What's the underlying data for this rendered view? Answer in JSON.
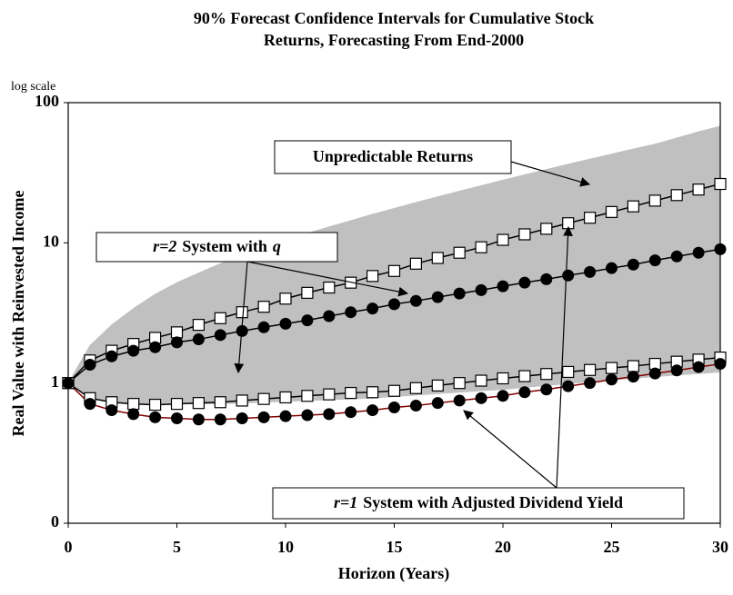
{
  "chart_data": {
    "type": "line",
    "title": [
      "90% Forecast Confidence Intervals for Cumulative Stock",
      "Returns, Forecasting From End-2000"
    ],
    "scale_note": "log scale",
    "xlabel": "Horizon (Years)",
    "ylabel": "Real Value with Reinvested Income",
    "yscale": "log",
    "x": [
      0,
      1,
      2,
      3,
      4,
      5,
      6,
      7,
      8,
      9,
      10,
      11,
      12,
      13,
      14,
      15,
      16,
      17,
      18,
      19,
      20,
      21,
      22,
      23,
      24,
      25,
      26,
      27,
      28,
      29,
      30
    ],
    "xlim": [
      0,
      30
    ],
    "xticks": [
      0,
      5,
      10,
      15,
      20,
      25,
      30
    ],
    "ylim": [
      0.1,
      100
    ],
    "yticks": [
      {
        "value": 0.1,
        "label": "0"
      },
      1,
      10,
      100
    ],
    "band": {
      "color": "#c0c0c0",
      "upper": [
        1,
        1.85,
        2.6,
        3.4,
        4.3,
        5.2,
        6.1,
        7.1,
        8.1,
        9.2,
        10.4,
        11.7,
        13,
        14.4,
        16,
        17.6,
        19.4,
        21.3,
        23.4,
        25.6,
        28,
        30.6,
        33.4,
        36.4,
        39.6,
        43,
        46.7,
        50.6,
        56,
        62,
        68
      ],
      "lower": [
        1,
        0.78,
        0.74,
        0.72,
        0.71,
        0.71,
        0.71,
        0.71,
        0.72,
        0.73,
        0.74,
        0.75,
        0.76,
        0.77,
        0.78,
        0.8,
        0.82,
        0.84,
        0.86,
        0.88,
        0.9,
        0.93,
        0.96,
        0.99,
        1.02,
        1.05,
        1.08,
        1.11,
        1.14,
        1.17,
        1.2
      ]
    },
    "series": [
      {
        "marker": "square",
        "color": "#000000",
        "values": [
          1,
          1.45,
          1.7,
          1.9,
          2.1,
          2.3,
          2.6,
          2.9,
          3.2,
          3.5,
          4.0,
          4.4,
          4.8,
          5.2,
          5.8,
          6.3,
          7.1,
          7.8,
          8.5,
          9.3,
          10.5,
          11.5,
          12.6,
          13.8,
          15.1,
          16.6,
          18.2,
          20,
          21.9,
          24,
          26.3
        ]
      },
      {
        "marker": "circle",
        "color": "#000000",
        "values": [
          1,
          1.35,
          1.55,
          1.7,
          1.8,
          1.95,
          2.05,
          2.2,
          2.35,
          2.5,
          2.65,
          2.8,
          3.0,
          3.2,
          3.4,
          3.65,
          3.85,
          4.1,
          4.35,
          4.6,
          4.9,
          5.2,
          5.5,
          5.85,
          6.2,
          6.6,
          7.0,
          7.5,
          8.0,
          8.5,
          9.0
        ]
      },
      {
        "marker": "square",
        "color": "#000000",
        "values": [
          1,
          0.78,
          0.73,
          0.71,
          0.7,
          0.71,
          0.72,
          0.73,
          0.75,
          0.77,
          0.79,
          0.81,
          0.83,
          0.85,
          0.86,
          0.88,
          0.92,
          0.96,
          1.0,
          1.04,
          1.08,
          1.12,
          1.16,
          1.2,
          1.24,
          1.28,
          1.32,
          1.37,
          1.42,
          1.47,
          1.52
        ]
      },
      {
        "marker": "circle",
        "color": "#800000",
        "values": [
          1,
          0.71,
          0.64,
          0.6,
          0.57,
          0.56,
          0.55,
          0.55,
          0.56,
          0.57,
          0.58,
          0.59,
          0.6,
          0.62,
          0.64,
          0.67,
          0.69,
          0.72,
          0.75,
          0.78,
          0.81,
          0.86,
          0.9,
          0.95,
          1.0,
          1.06,
          1.11,
          1.17,
          1.23,
          1.3,
          1.37
        ]
      }
    ],
    "annotations": [
      {
        "segments": [
          {
            "text": "Unpredictable Returns"
          }
        ]
      },
      {
        "segments": [
          {
            "text": "r=2",
            "italic": true
          },
          {
            "text": "System with"
          },
          {
            "text": "q",
            "italic": true
          }
        ]
      },
      {
        "segments": [
          {
            "text": "r=1",
            "italic": true
          },
          {
            "text": "System with Adjusted Dividend Yield"
          }
        ]
      }
    ]
  }
}
